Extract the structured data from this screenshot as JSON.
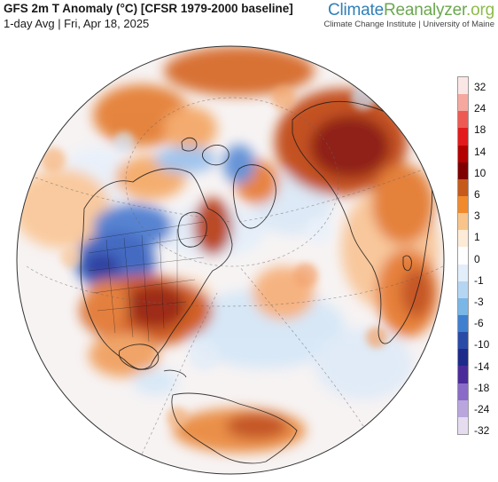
{
  "header": {
    "title": "GFS 2m T Anomaly (°C) [CFSR 1979-2000 baseline]",
    "subtitle": "1-day Avg | Fri, Apr 18, 2025"
  },
  "brand": {
    "name_part1": "Climate",
    "name_part2": "Reanalyzer",
    "name_part3": ".org",
    "subline": "Climate Change Institute | University of Maine"
  },
  "map": {
    "projection": "orthographic",
    "region": "Northern Hemisphere / North America and Eurasia",
    "visible_regions": [
      "North America",
      "Greenland",
      "Arctic",
      "Siberia",
      "East Asia",
      "North Atlantic",
      "South America"
    ],
    "notable_anomalies": [
      {
        "region": "western United States / western Canada",
        "sign": "cold"
      },
      {
        "region": "eastern United States",
        "sign": "warm"
      },
      {
        "region": "Siberia",
        "sign": "warm"
      },
      {
        "region": "Hudson Bay / Labrador",
        "sign": "warm"
      },
      {
        "region": "Greenland",
        "sign": "warm"
      },
      {
        "region": "northern South America",
        "sign": "warm"
      }
    ]
  },
  "legend": {
    "labels": [
      "32",
      "24",
      "18",
      "14",
      "10",
      "6",
      "3",
      "1",
      "0",
      "-1",
      "-3",
      "-6",
      "-10",
      "-14",
      "-18",
      "-24",
      "-32"
    ],
    "colors": [
      "#fbe6e6",
      "#f6a8a0",
      "#ee5a52",
      "#e31a1c",
      "#b30000",
      "#7f0000",
      "#c65a1a",
      "#f08a2c",
      "#f9c48a",
      "#fdebd7",
      "#ffffff",
      "#e2eefa",
      "#b5d6f2",
      "#7ab6e6",
      "#3f7fcf",
      "#2a4aa8",
      "#1d2a8a",
      "#4b2b9a",
      "#8a6bc8",
      "#b9a6dd",
      "#e6dcf0"
    ]
  }
}
